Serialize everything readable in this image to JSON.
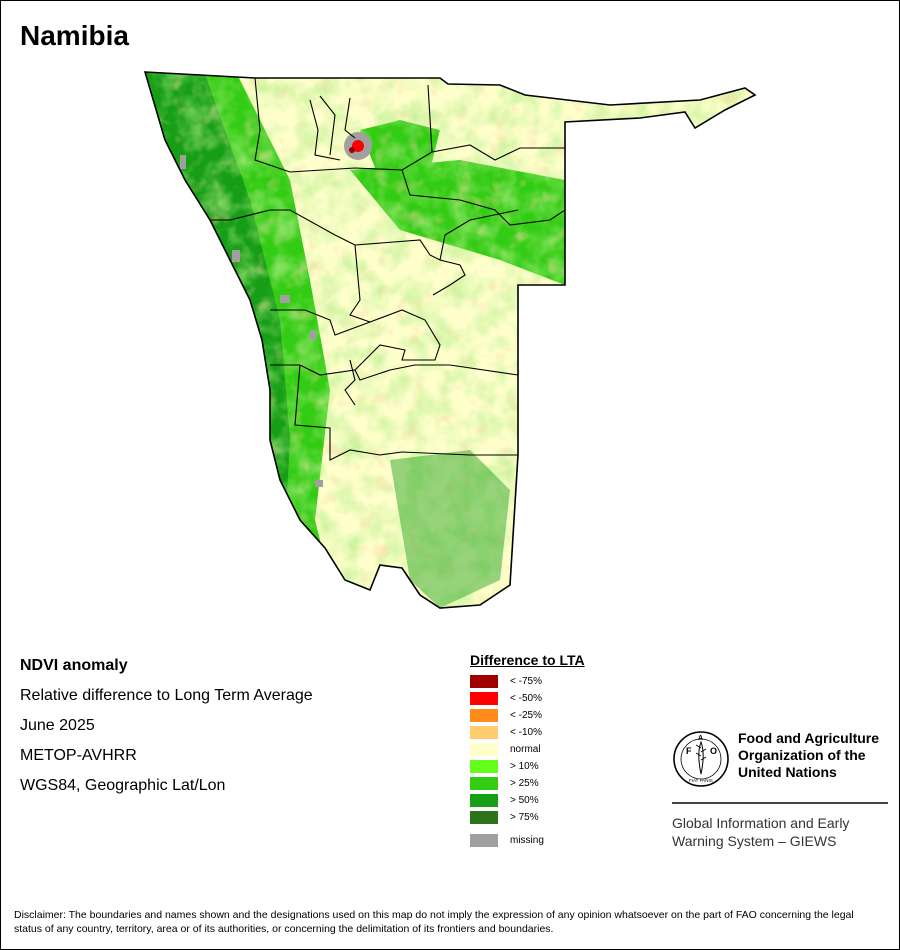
{
  "title": "Namibia",
  "info": {
    "product": "NDVI anomaly",
    "description": "Relative difference to Long Term Average",
    "period": "June 2025",
    "sensor": "METOP-AVHRR",
    "projection": "WGS84, Geographic Lat/Lon"
  },
  "legend": {
    "title": "Difference to LTA",
    "items": [
      {
        "label": "< -75%",
        "color": "#a00000"
      },
      {
        "label": "< -50%",
        "color": "#ff0000"
      },
      {
        "label": "< -25%",
        "color": "#ff8c1a"
      },
      {
        "label": "< -10%",
        "color": "#ffcc70"
      },
      {
        "label": "normal",
        "color": "#ffffcc"
      },
      {
        "label": "> 10%",
        "color": "#66ff1a"
      },
      {
        "label": "> 25%",
        "color": "#33cc14"
      },
      {
        "label": "> 50%",
        "color": "#169e16"
      },
      {
        "label": "> 75%",
        "color": "#2d7319"
      }
    ],
    "missing": {
      "label": "missing",
      "color": "#a0a0a0"
    }
  },
  "organization": {
    "name": "Food and Agriculture\nOrganization of the\nUnited Nations",
    "emblem_letters": [
      "F",
      "A",
      "O"
    ],
    "emblem_motto": "FIAT PANIS",
    "system": "Global Information and Early\nWarning System – GIEWS"
  },
  "disclaimer": "Disclaimer: The boundaries and names shown and the designations used on this map do not imply the expression of any opinion whatsoever on the part of FAO concerning the legal status of any country, territory, area or of its authorities, or concerning the delimitation of its frontiers and boundaries."
}
